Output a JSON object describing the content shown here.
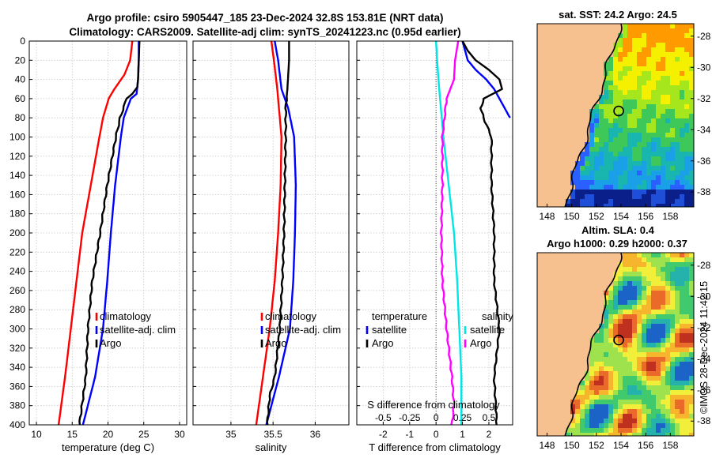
{
  "header": {
    "title_line1": "Argo profile: csiro 5905447_185 23-Dec-2024 32.8S 153.81E (NRT data)",
    "title_line2": "Climatology: CARS2009. Satellite-adj clim: synTS_20241223.nc (0.95d earlier)"
  },
  "maps": {
    "sst_title": "sat. SST: 24.2 Argo: 24.5",
    "sla_title_line1": "Altim. SLA: 0.4",
    "sla_title_line2": "Argo h1000: 0.29 h2000: 0.37",
    "lon_ticks": [
      "148",
      "150",
      "152",
      "154",
      "156",
      "158"
    ],
    "lat_ticks": [
      "-28",
      "-30",
      "-32",
      "-34",
      "-36",
      "-38"
    ],
    "land_color": "#f6c18f",
    "float_lon": 153.81,
    "float_lat": -32.8
  },
  "timestamp": "©IMOS 28-Dec-2024 11:42:15",
  "chart_data": [
    {
      "type": "line",
      "xlabel": "temperature (deg C)",
      "ylabel": "",
      "xlim": [
        9,
        31
      ],
      "ylim": [
        400,
        0
      ],
      "x_ticks": [
        "10",
        "15",
        "20",
        "25",
        "30"
      ],
      "y_ticks": [
        "0",
        "20",
        "40",
        "60",
        "80",
        "100",
        "120",
        "140",
        "160",
        "180",
        "200",
        "220",
        "240",
        "260",
        "280",
        "300",
        "320",
        "340",
        "360",
        "380",
        "400"
      ],
      "grid": true,
      "legend": [
        "climatology",
        "satellite-adj. clim",
        "Argo"
      ],
      "series": [
        {
          "name": "climatology",
          "color": "#ff0000",
          "depth": [
            0,
            20,
            35,
            50,
            60,
            80,
            100,
            150,
            200,
            250,
            300,
            350,
            400
          ],
          "values": [
            23.4,
            23.1,
            22.3,
            20.9,
            20.1,
            19.3,
            18.8,
            17.6,
            16.4,
            15.6,
            14.8,
            14.0,
            13.1
          ]
        },
        {
          "name": "satellite-adj. clim",
          "color": "#0000ff",
          "depth": [
            0,
            20,
            40,
            55,
            60,
            80,
            100,
            150,
            200,
            250,
            300,
            350,
            400
          ],
          "values": [
            24.3,
            24.3,
            24.2,
            24.0,
            23.2,
            22.2,
            21.8,
            21.0,
            20.4,
            19.9,
            19.3,
            18.2,
            16.5
          ]
        },
        {
          "name": "Argo",
          "color": "#000000",
          "depth": [
            0,
            20,
            40,
            48,
            55,
            60,
            80,
            100,
            150,
            200,
            250,
            300,
            350,
            400
          ],
          "values": [
            24.4,
            24.3,
            24.2,
            24.1,
            23.4,
            22.6,
            21.7,
            21.1,
            19.9,
            18.9,
            17.8,
            17.2,
            16.9,
            16.0
          ]
        }
      ]
    },
    {
      "type": "line",
      "xlabel": "salinity",
      "ylabel": "",
      "xlim": [
        34.55,
        36.4
      ],
      "ylim": [
        400,
        0
      ],
      "x_ticks": [
        "35",
        "35.5",
        "36"
      ],
      "grid": true,
      "legend": [
        "climatology",
        "satellite-adj. clim",
        "Argo"
      ],
      "series": [
        {
          "name": "climatology",
          "color": "#ff0000",
          "depth": [
            0,
            20,
            50,
            100,
            150,
            200,
            250,
            300,
            350,
            400
          ],
          "values": [
            35.48,
            35.51,
            35.55,
            35.6,
            35.59,
            35.56,
            35.52,
            35.46,
            35.38,
            35.3
          ]
        },
        {
          "name": "satellite-adj. clim",
          "color": "#0000ff",
          "depth": [
            0,
            20,
            50,
            70,
            100,
            150,
            200,
            250,
            300,
            350,
            400
          ],
          "values": [
            35.52,
            35.56,
            35.6,
            35.68,
            35.75,
            35.77,
            35.76,
            35.74,
            35.7,
            35.57,
            35.42
          ]
        },
        {
          "name": "Argo",
          "color": "#000000",
          "depth": [
            0,
            20,
            50,
            70,
            100,
            150,
            200,
            250,
            300,
            350,
            370,
            400
          ],
          "values": [
            35.69,
            35.69,
            35.67,
            35.65,
            35.65,
            35.64,
            35.63,
            35.61,
            35.58,
            35.52,
            35.46,
            35.43
          ]
        }
      ]
    },
    {
      "type": "line",
      "xlabel": "T difference from climatology",
      "ylabel": "",
      "xlim": [
        -3,
        2.9
      ],
      "ylim": [
        400,
        0
      ],
      "x_ticks": [
        "-2",
        "-1",
        "0",
        "1",
        "2"
      ],
      "top_axis_label": "S difference from climatology",
      "top_x_ticks": [
        "-0.5",
        "-0.25",
        "0",
        "0.25",
        "0.5"
      ],
      "s_xlim": [
        -0.75,
        0.725
      ],
      "grid": true,
      "legend_titles": [
        "temperature",
        "salinity"
      ],
      "legend": [
        "satellite",
        "Argo",
        "satellite",
        "Argo"
      ],
      "series": [
        {
          "name": "temperature satellite",
          "color": "#0000ff",
          "depth": [
            0,
            20,
            30,
            40,
            50,
            55,
            60,
            70,
            80
          ],
          "values": [
            1.0,
            1.2,
            1.5,
            1.9,
            2.2,
            2.3,
            2.4,
            2.6,
            2.8
          ]
        },
        {
          "name": "temperature Argo",
          "color": "#000000",
          "depth": [
            0,
            10,
            20,
            30,
            40,
            50,
            60,
            70,
            80,
            100,
            150,
            200,
            250,
            300,
            350,
            400
          ],
          "values": [
            1.0,
            1.2,
            1.5,
            2.0,
            2.4,
            2.5,
            1.8,
            1.7,
            1.8,
            2.1,
            2.1,
            2.2,
            2.2,
            2.4,
            2.2,
            2.3
          ]
        },
        {
          "name": "salinity satellite",
          "color": "#00e5e5",
          "depth": [
            0,
            20,
            50,
            100,
            150,
            200,
            250,
            300,
            350,
            400
          ],
          "values": [
            0.0,
            0.01,
            0.03,
            0.07,
            0.12,
            0.17,
            0.2,
            0.22,
            0.24,
            0.24
          ]
        },
        {
          "name": "salinity Argo",
          "color": "#ff00ff",
          "depth": [
            0,
            20,
            40,
            60,
            80,
            100,
            150,
            200,
            250,
            300,
            350,
            380,
            400
          ],
          "values": [
            0.21,
            0.18,
            0.17,
            0.1,
            0.08,
            0.06,
            0.06,
            0.05,
            0.06,
            0.1,
            0.15,
            0.17,
            0.15
          ]
        }
      ]
    }
  ]
}
